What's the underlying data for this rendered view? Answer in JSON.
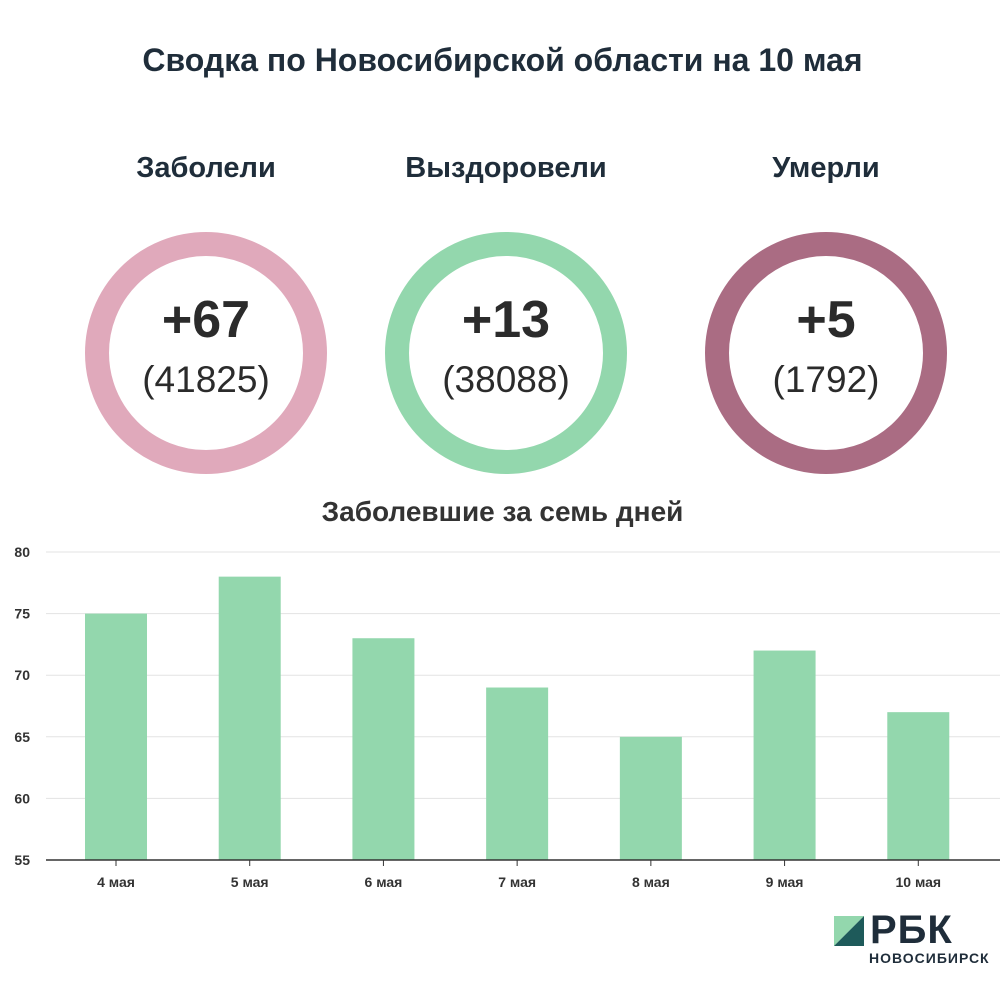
{
  "title": "Сводка по Новосибирской области на 10 мая",
  "stats": [
    {
      "label": "Заболели",
      "delta": "+67",
      "total": "(41825)",
      "color": "#e0a9bb"
    },
    {
      "label": "Выздоровели",
      "delta": "+13",
      "total": "(38088)",
      "color": "#93d7ad"
    },
    {
      "label": "Умерли",
      "delta": "+5",
      "total": "(1792)",
      "color": "#aa6c83"
    }
  ],
  "chart_data": {
    "type": "bar",
    "title": "Заболевшие за семь дней",
    "categories": [
      "4 мая",
      "5 мая",
      "6 мая",
      "7 мая",
      "8 мая",
      "9 мая",
      "10 мая"
    ],
    "values": [
      75,
      78,
      73,
      69,
      65,
      72,
      67
    ],
    "ylim": [
      55,
      80
    ],
    "yticks": [
      55,
      60,
      65,
      70,
      75,
      80
    ],
    "grid": true,
    "bar_color": "#93d7ad"
  },
  "logo": {
    "word": "РБК",
    "sub": "НОВОСИБИРСК",
    "mark_dark": "#1e5a5a",
    "mark_light": "#93d7ad"
  }
}
